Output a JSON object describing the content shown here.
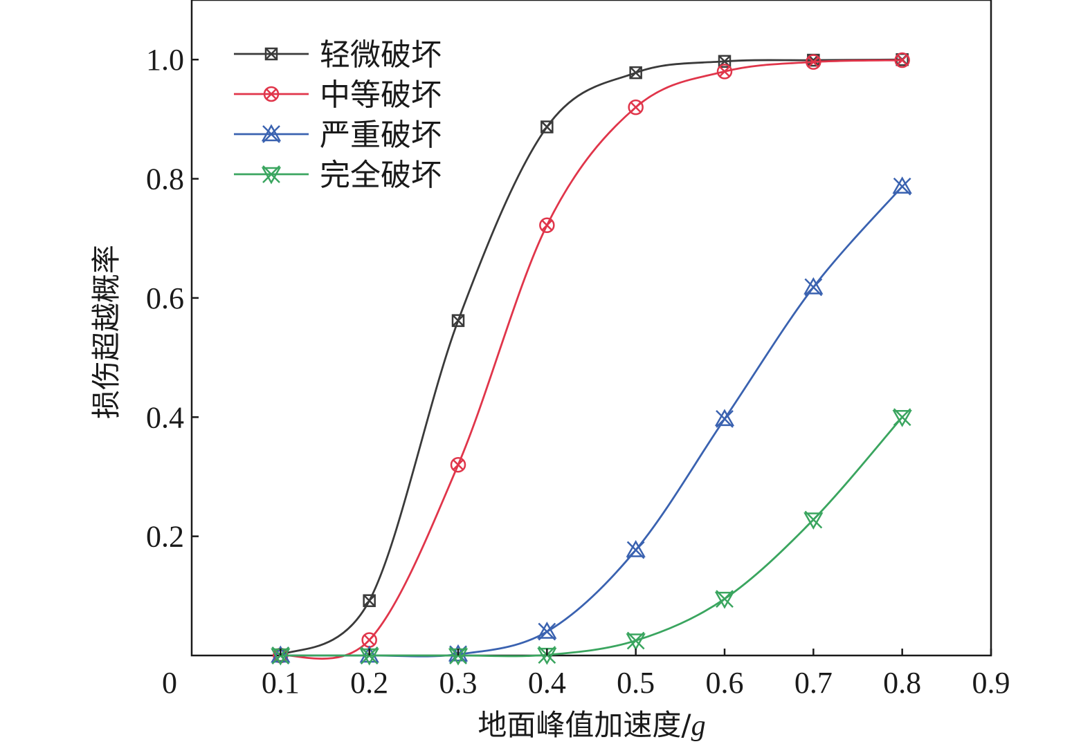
{
  "chart_data": {
    "type": "line",
    "xlabel": "地面峰值加速度/",
    "xlabel_italic_unit": "g",
    "ylabel": "损伤超越概率",
    "xlim": [
      0,
      0.9
    ],
    "ylim": [
      0,
      1.1
    ],
    "xticks": [
      0.1,
      0.2,
      0.3,
      0.4,
      0.5,
      0.6,
      0.7,
      0.8,
      0.9
    ],
    "xtick_labels": [
      "0.1",
      "0.2",
      "0.3",
      "0.4",
      "0.5",
      "0.6",
      "0.7",
      "0.8",
      "0.9"
    ],
    "yticks": [
      0.2,
      0.4,
      0.6,
      0.8,
      1.0
    ],
    "ytick_labels": [
      "0.2",
      "0.4",
      "0.6",
      "0.8",
      "1.0"
    ],
    "origin_label": "0",
    "grid": false,
    "legend_position": "top-left",
    "x": [
      0.1,
      0.2,
      0.3,
      0.4,
      0.5,
      0.6,
      0.7,
      0.8
    ],
    "series": [
      {
        "name": "轻微破坏",
        "color": "#3a3a3a",
        "marker": "square-x",
        "values": [
          0.0,
          0.092,
          0.562,
          0.887,
          0.978,
          0.997,
          0.999,
          1.0
        ]
      },
      {
        "name": "中等破坏",
        "color": "#e0354a",
        "marker": "circle-x",
        "values": [
          0.0,
          0.026,
          0.32,
          0.722,
          0.92,
          0.98,
          0.996,
          0.999
        ]
      },
      {
        "name": "严重破坏",
        "color": "#3a62b0",
        "marker": "tri-x",
        "values": [
          0.0,
          0.0,
          0.002,
          0.04,
          0.177,
          0.397,
          0.618,
          0.787
        ]
      },
      {
        "name": "完全破坏",
        "color": "#3aa55f",
        "marker": "tri-down-x",
        "values": [
          0.0,
          0.0,
          0.0,
          0.001,
          0.025,
          0.095,
          0.228,
          0.4
        ]
      }
    ]
  }
}
